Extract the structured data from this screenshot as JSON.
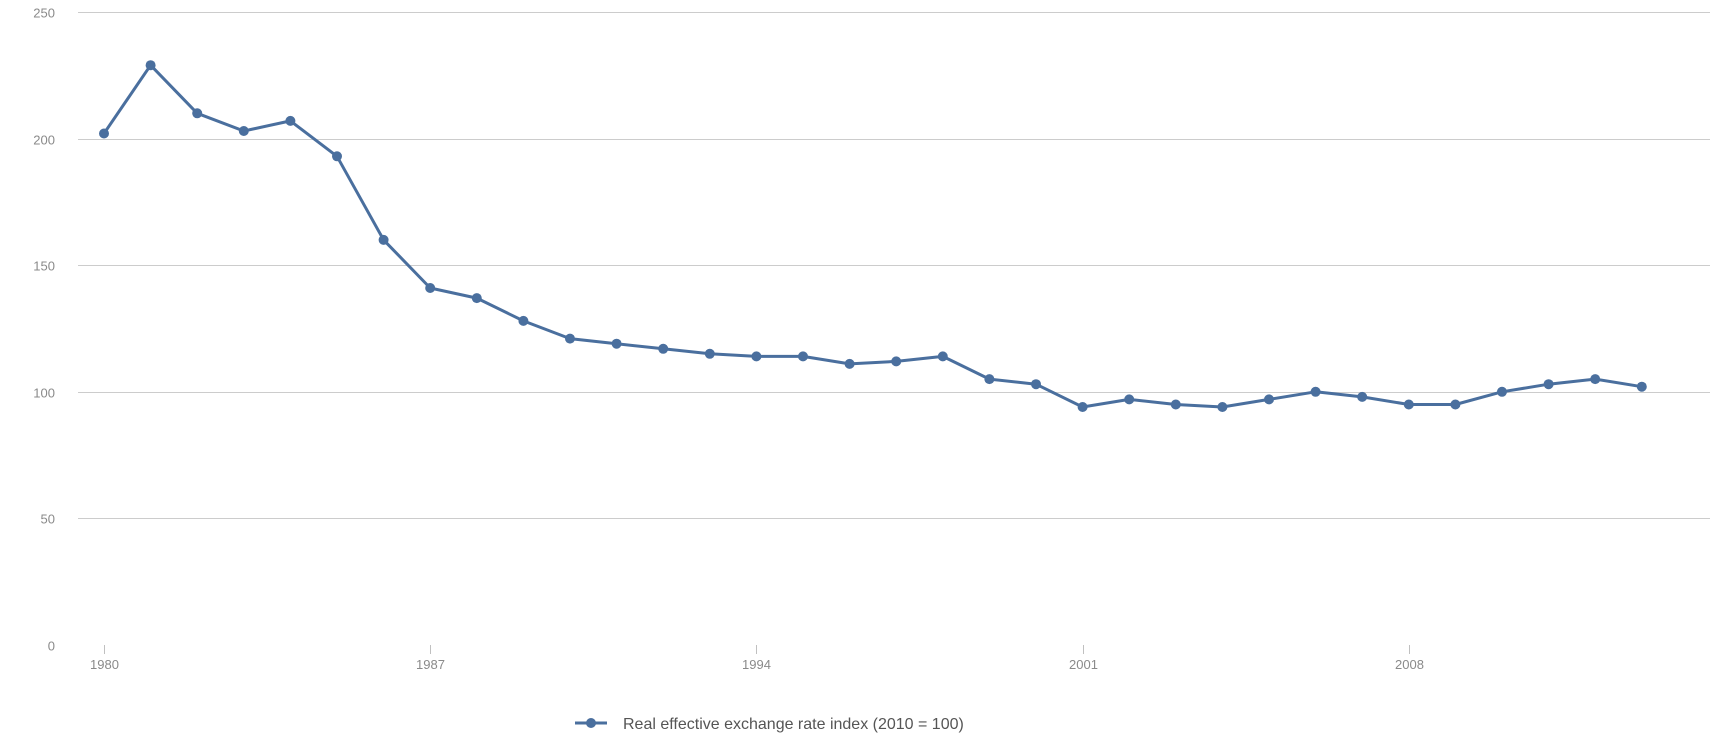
{
  "chart_data": {
    "type": "line",
    "title": "",
    "xlabel": "",
    "ylabel": "",
    "ylim": [
      0,
      250
    ],
    "xlim": [
      1980,
      2013
    ],
    "y_ticks": [
      0,
      50,
      100,
      150,
      200,
      250
    ],
    "y_tick_labels": [
      "0",
      "50",
      "100",
      "150",
      "200",
      "250"
    ],
    "x_ticks": [
      1980,
      1987,
      1994,
      2001,
      2008
    ],
    "x_tick_labels": [
      "1980",
      "1987",
      "1994",
      "2001",
      "2008"
    ],
    "grid": true,
    "legend_position": "bottom-center",
    "series": [
      {
        "name": "Real effective exchange rate index (2010 = 100)",
        "color": "#4a6f9e",
        "x": [
          1980,
          1981,
          1982,
          1983,
          1984,
          1985,
          1986,
          1987,
          1988,
          1989,
          1990,
          1991,
          1992,
          1993,
          1994,
          1995,
          1996,
          1997,
          1998,
          1999,
          2000,
          2001,
          2002,
          2003,
          2004,
          2005,
          2006,
          2007,
          2008,
          2009,
          2010,
          2011,
          2012,
          2013
        ],
        "values": [
          202,
          229,
          210,
          203,
          207,
          193,
          160,
          141,
          137,
          128,
          121,
          119,
          117,
          115,
          114,
          114,
          111,
          112,
          114,
          105,
          103,
          94,
          97,
          95,
          94,
          97,
          100,
          98,
          95,
          95,
          100,
          103,
          105,
          102
        ]
      }
    ]
  }
}
